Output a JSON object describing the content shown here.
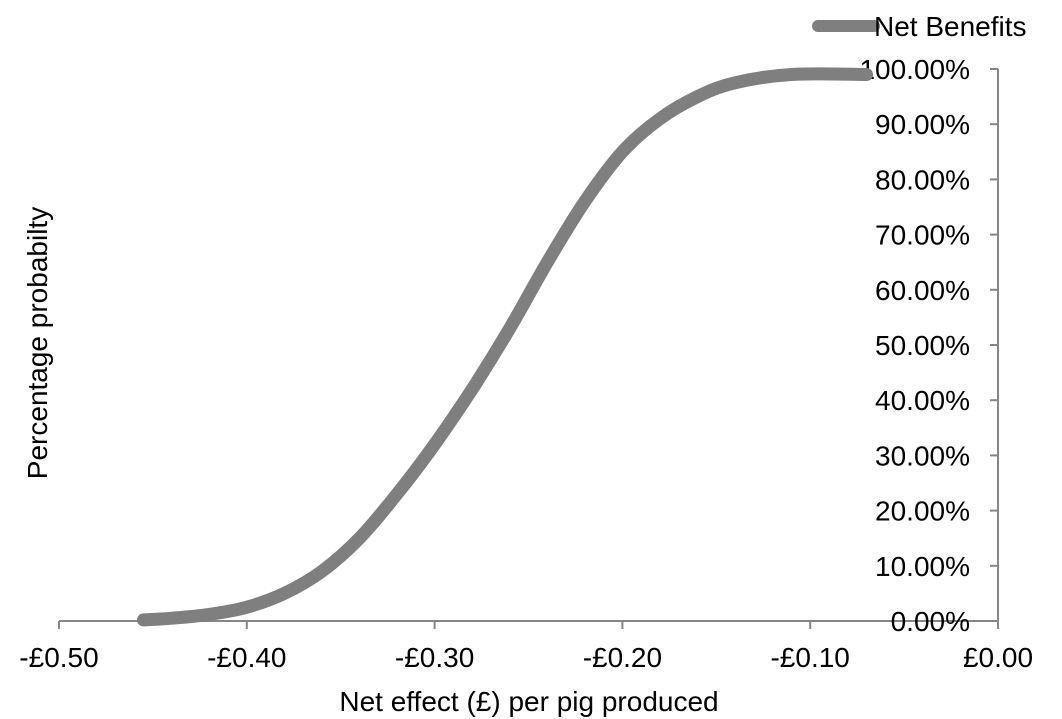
{
  "chart_data": {
    "type": "line",
    "title": "",
    "xlabel": "Net effect (£) per pig produced",
    "ylabel": "Percentage  probabilty",
    "xlim": [
      -0.5,
      0.0
    ],
    "ylim": [
      0,
      1
    ],
    "x_ticks": [
      -0.5,
      -0.4,
      -0.3,
      -0.2,
      -0.1,
      0.0
    ],
    "x_tick_labels": [
      "-£0.50",
      "-£0.40",
      "-£0.30",
      "-£0.20",
      "-£0.10",
      "£0.00"
    ],
    "y_ticks": [
      0,
      0.1,
      0.2,
      0.3,
      0.4,
      0.5,
      0.6,
      0.7,
      0.8,
      0.9,
      1.0
    ],
    "y_tick_labels": [
      "0.00%",
      "10.00%",
      "20.00%",
      "30.00%",
      "40.00%",
      "50.00%",
      "60.00%",
      "70.00%",
      "80.00%",
      "90.00%",
      "100.00%"
    ],
    "grid": false,
    "legend_position": "top-right",
    "series_color": "#7f7f7f",
    "series": [
      {
        "name": "Net Benefits",
        "x": [
          -0.455,
          -0.44,
          -0.42,
          -0.4,
          -0.38,
          -0.36,
          -0.34,
          -0.32,
          -0.3,
          -0.28,
          -0.26,
          -0.24,
          -0.22,
          -0.2,
          -0.18,
          -0.16,
          -0.14,
          -0.11,
          -0.07
        ],
        "y": [
          0.002,
          0.005,
          0.012,
          0.025,
          0.05,
          0.09,
          0.15,
          0.23,
          0.32,
          0.42,
          0.53,
          0.65,
          0.76,
          0.85,
          0.91,
          0.95,
          0.975,
          0.99,
          0.99
        ]
      }
    ]
  }
}
